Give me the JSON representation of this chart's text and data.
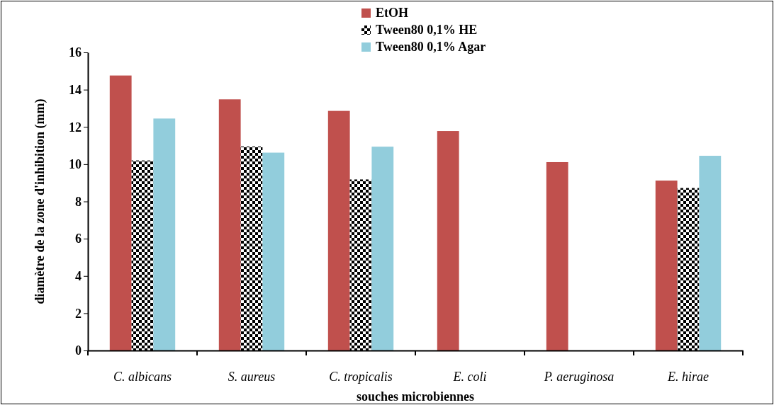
{
  "chart_data": {
    "type": "bar",
    "categories": [
      "C. albicans",
      "S. aureus",
      "C. tropicalis",
      "E. coli",
      "P. aeruginosa",
      "E. hirae"
    ],
    "series": [
      {
        "name": "EtOH",
        "color": "#c0504d",
        "values": [
          14.76,
          13.48,
          12.86,
          11.78,
          10.11,
          9.12
        ]
      },
      {
        "name": "Tween80 0,1% HE",
        "color": "#000000",
        "values": [
          10.2,
          10.95,
          9.18,
          null,
          null,
          8.72
        ]
      },
      {
        "name": "Tween80 0,1% Agar",
        "color": "#92cddc",
        "values": [
          12.45,
          10.62,
          10.94,
          null,
          null,
          10.45
        ]
      }
    ],
    "xlabel": "souches microbiennes",
    "ylabel": "diamètre de la zone d'inhibition (mm)",
    "ylim": [
      0,
      16
    ],
    "yticks": [
      0,
      2,
      4,
      6,
      8,
      10,
      12,
      14,
      16
    ],
    "legend": "top",
    "grid": false
  }
}
